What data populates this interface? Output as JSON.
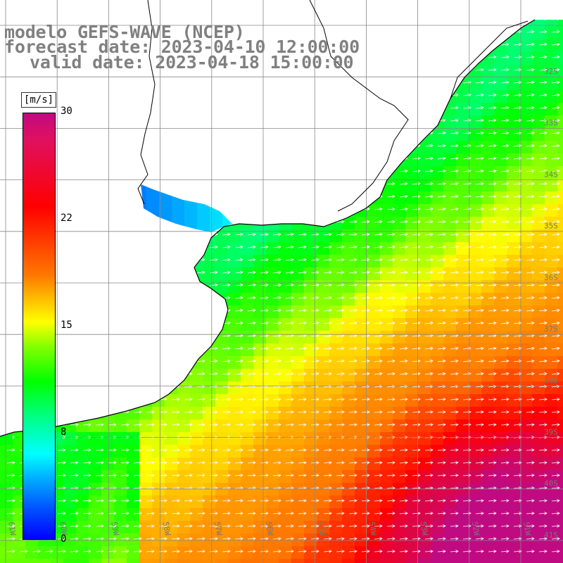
{
  "title": {
    "line1": "modelo GEFS-WAVE (NCEP)",
    "line2": "forecast date: 2023-04-10 12:00:00",
    "line3": "valid date: 2023-04-18 15:00:00"
  },
  "colorbar": {
    "unit": "[m/s]",
    "ticks": [
      "30",
      "22",
      "15",
      "8",
      "0"
    ],
    "colors": [
      "#c00a82",
      "#ff0000",
      "#ff7800",
      "#ffff00",
      "#00ff00",
      "#00ffff",
      "#0050ff",
      "#0000ff"
    ]
  },
  "map": {
    "lat_labels": [
      "32S",
      "33S",
      "34S",
      "35S",
      "36S",
      "37S",
      "38S",
      "39S",
      "40S",
      "41S"
    ],
    "lon_labels": [
      "61W",
      "60W",
      "59W",
      "58W",
      "57W",
      "56W",
      "55W",
      "54W",
      "53W",
      "52W",
      "51W"
    ],
    "land_color": "#ffffff",
    "grid_color": "#888888",
    "arrow_color": "#ffffff"
  }
}
